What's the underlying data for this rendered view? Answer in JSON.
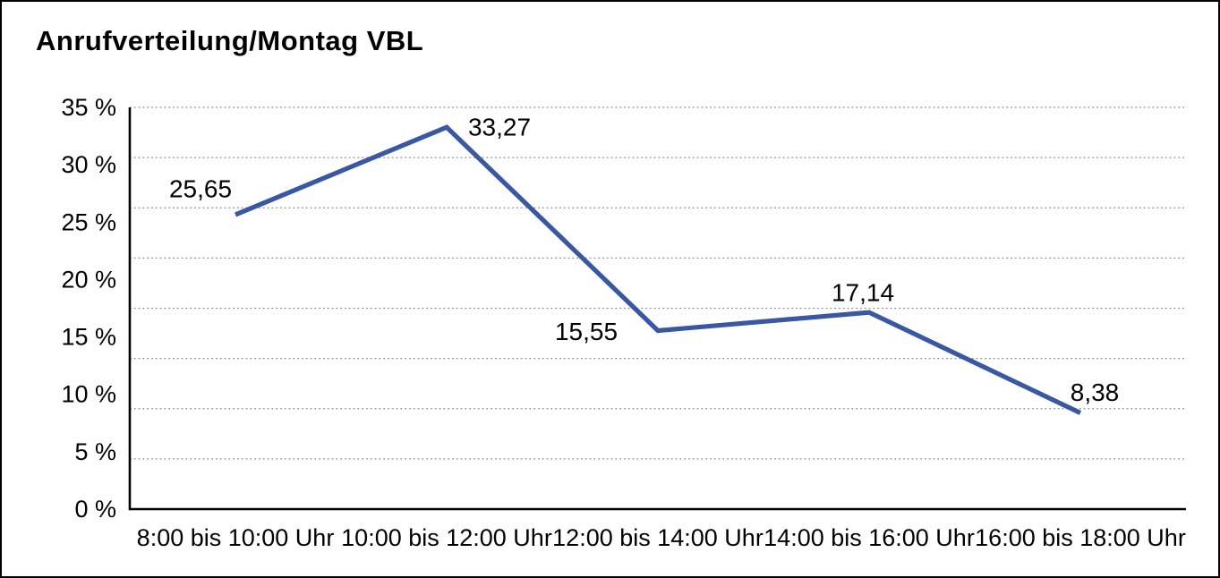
{
  "chart_data": {
    "type": "line",
    "title": "Anrufverteilung/Montag VBL",
    "categories": [
      "8:00 bis 10:00 Uhr",
      "10:00 bis 12:00 Uhr",
      "12:00 bis 14:00 Uhr",
      "14:00 bis 16:00 Uhr",
      "16:00 bis 18:00 Uhr"
    ],
    "values": [
      25.65,
      33.27,
      15.55,
      17.14,
      8.38
    ],
    "data_labels": [
      "25,65",
      "33,27",
      "15,55",
      "17,14",
      "8,38"
    ],
    "y_tick_labels": [
      "35 %",
      "30 %",
      "25 %",
      "20 %",
      "15 %",
      "10 %",
      "5 %",
      "0 %"
    ],
    "y_tick_values": [
      35,
      30,
      25,
      20,
      15,
      10,
      5,
      0
    ],
    "ylim": [
      0,
      35
    ],
    "xlabel": "",
    "ylabel": "",
    "legend": "none",
    "grid": true,
    "grid_style": "dotted-horizontal",
    "line_color": "#3A57A3",
    "axis_color": "#000000",
    "gridline_color": "#8a8a8a",
    "text_color": "#000000",
    "background_color": "#ffffff"
  }
}
